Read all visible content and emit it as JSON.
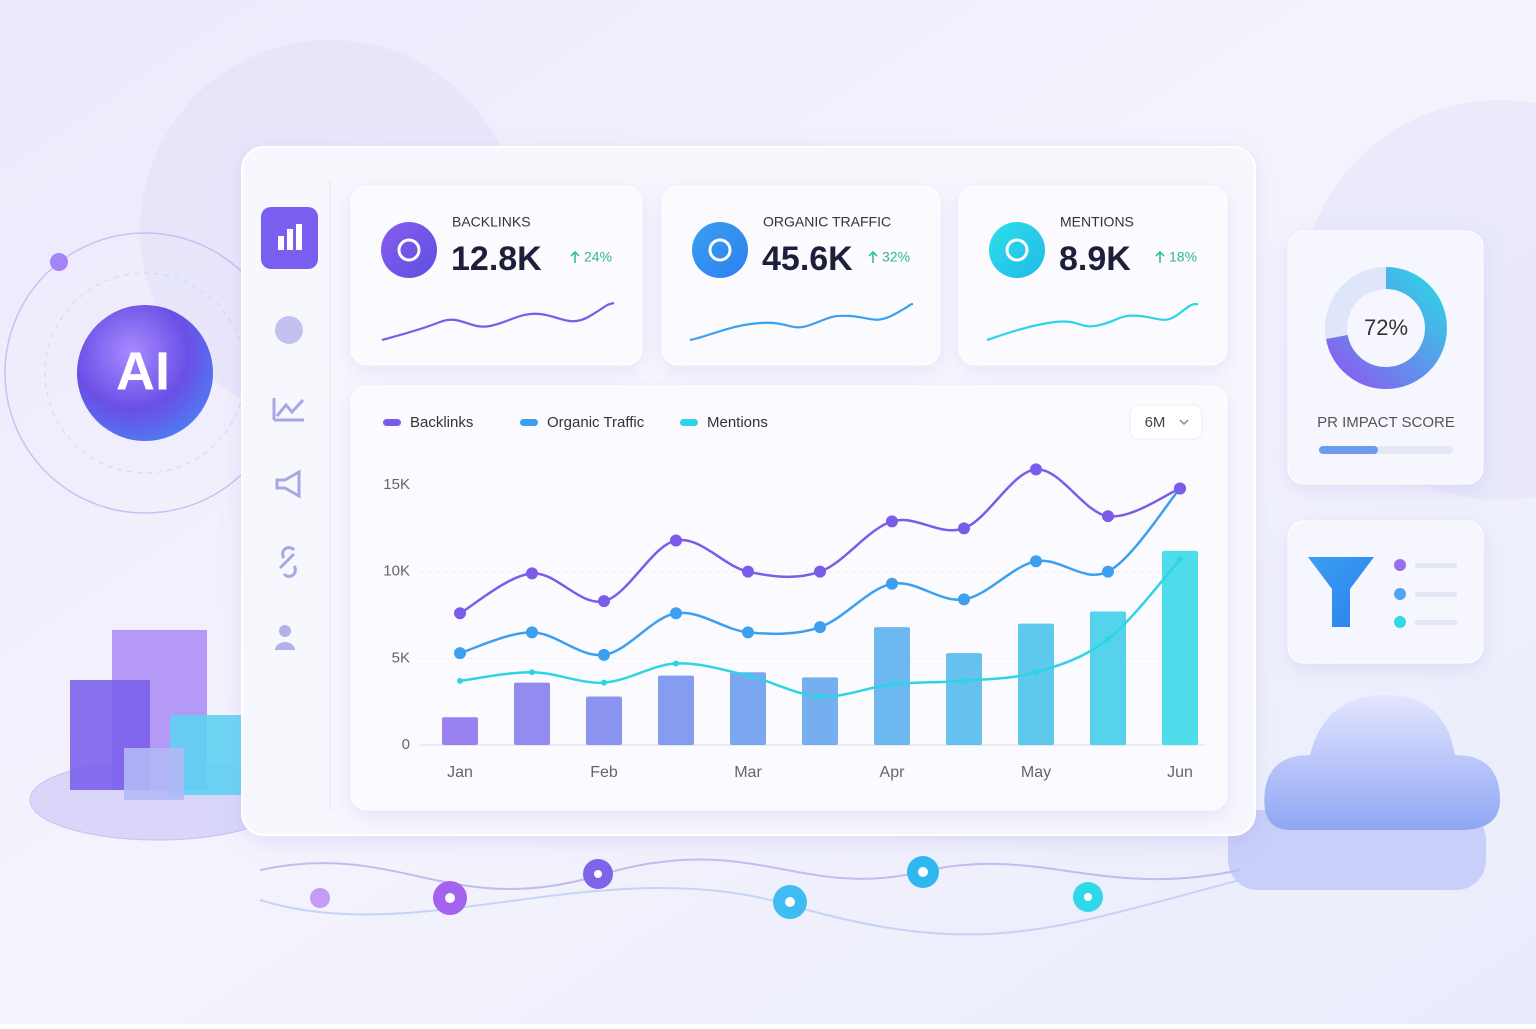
{
  "badge": "AI",
  "kpis": [
    {
      "label": "BACKLINKS",
      "value": "12.8K",
      "change": "24%"
    },
    {
      "label": "ORGANIC TRAFFIC",
      "value": "45.6K",
      "change": "32%"
    },
    {
      "label": "MENTIONS",
      "value": "8.9K",
      "change": "18%"
    }
  ],
  "range_selector": "6M",
  "score": {
    "value": 72,
    "label": "72%",
    "title": "PR IMPACT SCORE",
    "progress": 44
  },
  "chart_data": {
    "type": "line",
    "categories": [
      "Jan",
      null,
      "Feb",
      null,
      "Mar",
      null,
      "Apr",
      null,
      "May",
      null,
      "Jun"
    ],
    "series": [
      {
        "name": "Backlinks",
        "color": "#7b5ce8",
        "values": [
          7600,
          9900,
          8300,
          11800,
          10000,
          10000,
          12900,
          12500,
          15900,
          13200,
          14800
        ]
      },
      {
        "name": "Organic Traffic",
        "color": "#3d9ff0",
        "values": [
          5300,
          6500,
          5200,
          7600,
          6500,
          6800,
          9300,
          8400,
          10600,
          10000,
          14800
        ]
      },
      {
        "name": "Mentions",
        "color": "#2fd3e6",
        "values": [
          3700,
          4200,
          3600,
          4700,
          4000,
          2800,
          3500,
          3700,
          4200,
          6100,
          10700
        ]
      }
    ],
    "bars": {
      "type": "bar",
      "values": [
        1600,
        3600,
        2800,
        4000,
        4200,
        3900,
        6800,
        5300,
        7000,
        7700,
        11200
      ]
    },
    "ylim": [
      0,
      17000
    ],
    "yticks": [
      0,
      {
        "value": 5000,
        "label": "5K"
      },
      {
        "value": 10000,
        "label": "10K"
      },
      {
        "value": 15000,
        "label": "15K"
      }
    ],
    "grid": true
  }
}
